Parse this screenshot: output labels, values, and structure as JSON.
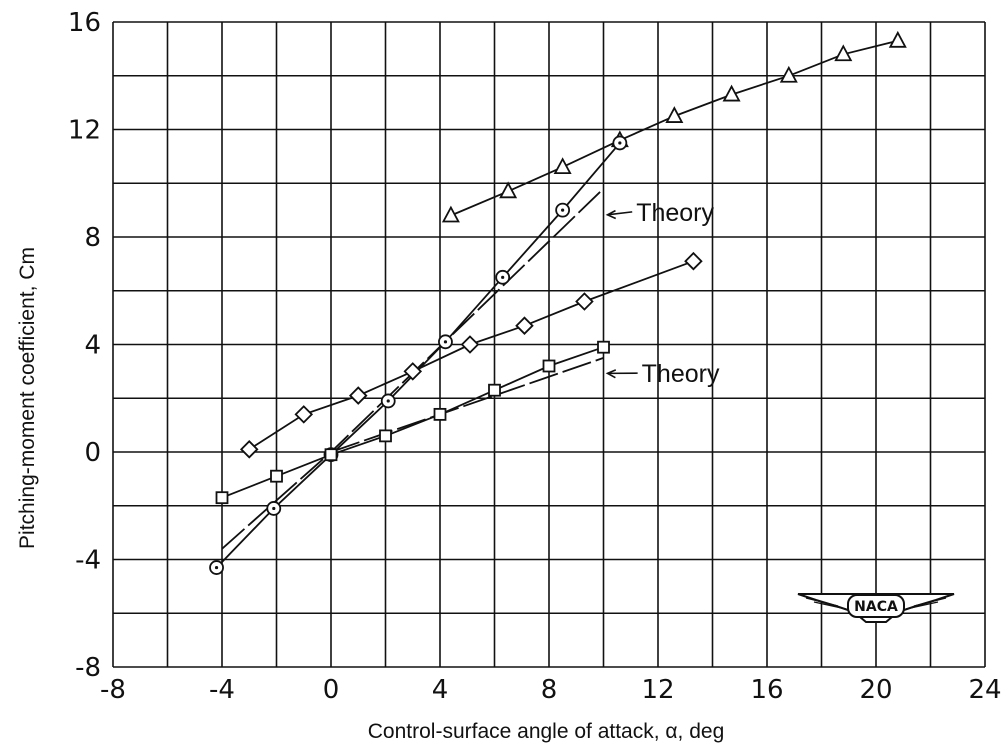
{
  "chart_data": {
    "type": "line",
    "title": "",
    "xlabel": "Control-surface angle of attack, α, deg",
    "ylabel": "Pitching-moment coefficient, Cm",
    "xlim": [
      -8,
      24
    ],
    "ylim": [
      -8,
      16
    ],
    "xticks": [
      -8,
      -4,
      0,
      4,
      8,
      12,
      16,
      20,
      24
    ],
    "yticks": [
      -8,
      -4,
      0,
      4,
      8,
      12,
      16
    ],
    "xtick_labels": [
      "-8",
      "-4",
      "0",
      "4",
      "8",
      "12",
      "16",
      "20",
      "24"
    ],
    "ytick_labels": [
      "-8",
      "-4",
      "0",
      "4",
      "8",
      "12",
      "16"
    ],
    "grid": true,
    "series": [
      {
        "marker": "triangle",
        "x": [
          4.4,
          6.5,
          8.5,
          10.6,
          12.6,
          14.7,
          16.8,
          18.8,
          20.8
        ],
        "y": [
          8.8,
          9.7,
          10.6,
          11.6,
          12.5,
          13.3,
          14.0,
          14.8,
          15.3
        ]
      },
      {
        "marker": "circle-dot",
        "x": [
          -4.2,
          -2.1,
          0,
          2.1,
          4.2,
          6.3,
          8.5,
          10.6
        ],
        "y": [
          -4.3,
          -2.1,
          -0.1,
          1.9,
          4.1,
          6.5,
          9.0,
          11.5
        ]
      },
      {
        "marker": "diamond",
        "x": [
          -3.0,
          -1.0,
          1.0,
          3.0,
          5.1,
          7.1,
          9.3,
          13.3
        ],
        "y": [
          0.1,
          1.4,
          2.1,
          3.0,
          4.0,
          4.7,
          5.6,
          7.1
        ]
      },
      {
        "marker": "square",
        "x": [
          -4,
          -2,
          0,
          2,
          4,
          6,
          8,
          10
        ],
        "y": [
          -1.7,
          -0.9,
          -0.1,
          0.6,
          1.4,
          2.3,
          3.2,
          3.9
        ]
      },
      {
        "marker": "none",
        "style": "long-dash",
        "x": [
          -4,
          0,
          10
        ],
        "y": [
          -3.6,
          0,
          9.8
        ]
      },
      {
        "marker": "none",
        "style": "long-dash",
        "x": [
          0,
          10
        ],
        "y": [
          0,
          3.5
        ]
      }
    ],
    "annotations": [
      {
        "text": "Theory",
        "x": 11.2,
        "y": 8.6,
        "arrow_to": [
          10,
          8.9
        ]
      },
      {
        "text": "Theory",
        "x": 11.4,
        "y": 2.6,
        "arrow_to": [
          10,
          3.0
        ]
      }
    ],
    "logo": "NACA",
    "line_color": "#111111"
  }
}
